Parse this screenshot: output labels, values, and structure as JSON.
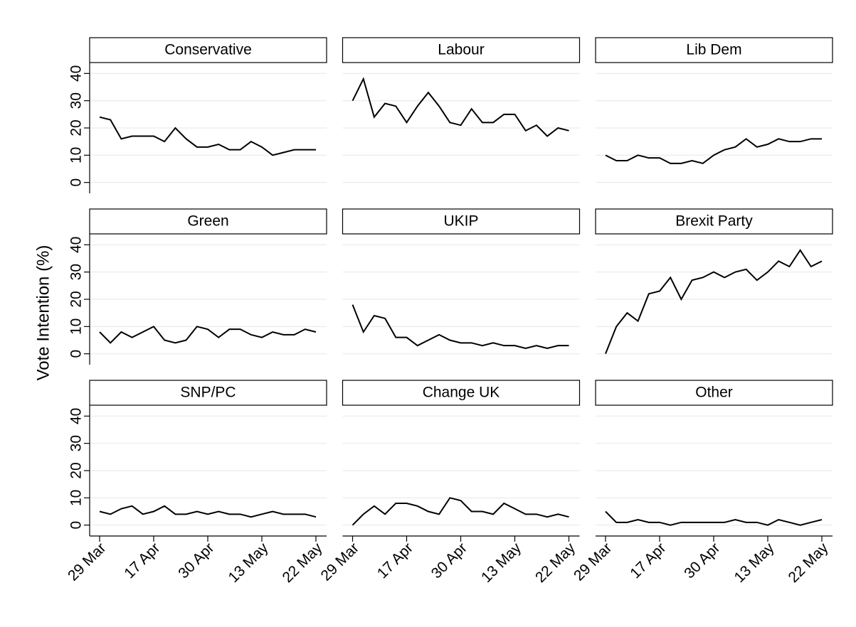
{
  "y_label": "Vote Intention (%)",
  "chart_data": [
    {
      "type": "line",
      "title": "Conservative",
      "color": "#000000",
      "ylim": [
        -4,
        44
      ],
      "yticks": [
        0,
        10,
        20,
        30,
        40
      ],
      "grid": true,
      "ytick_labels": true,
      "xtick_labels": false,
      "categories": [
        "29 Mar",
        null,
        null,
        null,
        null,
        "17 Apr",
        null,
        null,
        null,
        null,
        "30 Apr",
        null,
        null,
        null,
        null,
        "13 May",
        null,
        null,
        null,
        null,
        "22 May"
      ],
      "values": [
        24,
        23,
        16,
        17,
        17,
        17,
        15,
        20,
        16,
        13,
        13,
        14,
        12,
        12,
        15,
        13,
        10,
        11,
        12,
        12,
        12
      ]
    },
    {
      "type": "line",
      "title": "Labour",
      "color": "#000000",
      "ylim": [
        -4,
        44
      ],
      "yticks": [
        0,
        10,
        20,
        30,
        40
      ],
      "grid": true,
      "ytick_labels": false,
      "xtick_labels": false,
      "categories": [
        "29 Mar",
        null,
        null,
        null,
        null,
        "17 Apr",
        null,
        null,
        null,
        null,
        "30 Apr",
        null,
        null,
        null,
        null,
        "13 May",
        null,
        null,
        null,
        null,
        "22 May"
      ],
      "values": [
        30,
        38,
        24,
        29,
        28,
        22,
        28,
        33,
        28,
        22,
        21,
        27,
        22,
        22,
        25,
        25,
        19,
        21,
        17,
        20,
        19
      ]
    },
    {
      "type": "line",
      "title": "Lib Dem",
      "color": "#000000",
      "ylim": [
        -4,
        44
      ],
      "yticks": [
        0,
        10,
        20,
        30,
        40
      ],
      "grid": true,
      "ytick_labels": false,
      "xtick_labels": false,
      "categories": [
        "29 Mar",
        null,
        null,
        null,
        null,
        "17 Apr",
        null,
        null,
        null,
        null,
        "30 Apr",
        null,
        null,
        null,
        null,
        "13 May",
        null,
        null,
        null,
        null,
        "22 May"
      ],
      "values": [
        10,
        8,
        8,
        10,
        9,
        9,
        7,
        7,
        8,
        7,
        10,
        12,
        13,
        16,
        13,
        14,
        16,
        15,
        15,
        16,
        16
      ]
    },
    {
      "type": "line",
      "title": "Green",
      "color": "#000000",
      "ylim": [
        -4,
        44
      ],
      "yticks": [
        0,
        10,
        20,
        30,
        40
      ],
      "grid": true,
      "ytick_labels": true,
      "xtick_labels": false,
      "categories": [
        "29 Mar",
        null,
        null,
        null,
        null,
        "17 Apr",
        null,
        null,
        null,
        null,
        "30 Apr",
        null,
        null,
        null,
        null,
        "13 May",
        null,
        null,
        null,
        null,
        "22 May"
      ],
      "values": [
        8,
        4,
        8,
        6,
        8,
        10,
        5,
        4,
        5,
        10,
        9,
        6,
        9,
        9,
        7,
        6,
        8,
        7,
        7,
        9,
        8
      ]
    },
    {
      "type": "line",
      "title": "UKIP",
      "color": "#000000",
      "ylim": [
        -4,
        44
      ],
      "yticks": [
        0,
        10,
        20,
        30,
        40
      ],
      "grid": true,
      "ytick_labels": false,
      "xtick_labels": false,
      "categories": [
        "29 Mar",
        null,
        null,
        null,
        null,
        "17 Apr",
        null,
        null,
        null,
        null,
        "30 Apr",
        null,
        null,
        null,
        null,
        "13 May",
        null,
        null,
        null,
        null,
        "22 May"
      ],
      "values": [
        18,
        8,
        14,
        13,
        6,
        6,
        3,
        5,
        7,
        5,
        4,
        4,
        3,
        4,
        3,
        3,
        2,
        3,
        2,
        3,
        3
      ]
    },
    {
      "type": "line",
      "title": "Brexit Party",
      "color": "#000000",
      "ylim": [
        -4,
        44
      ],
      "yticks": [
        0,
        10,
        20,
        30,
        40
      ],
      "grid": true,
      "ytick_labels": false,
      "xtick_labels": false,
      "categories": [
        "29 Mar",
        null,
        null,
        null,
        null,
        "17 Apr",
        null,
        null,
        null,
        null,
        "30 Apr",
        null,
        null,
        null,
        null,
        "13 May",
        null,
        null,
        null,
        null,
        "22 May"
      ],
      "values": [
        0,
        10,
        15,
        12,
        22,
        23,
        28,
        20,
        27,
        28,
        30,
        28,
        30,
        31,
        27,
        30,
        34,
        32,
        38,
        32,
        34
      ]
    },
    {
      "type": "line",
      "title": "SNP/PC",
      "color": "#000000",
      "ylim": [
        -4,
        44
      ],
      "yticks": [
        0,
        10,
        20,
        30,
        40
      ],
      "grid": true,
      "ytick_labels": true,
      "xtick_labels": true,
      "categories": [
        "29 Mar",
        null,
        null,
        null,
        null,
        "17 Apr",
        null,
        null,
        null,
        null,
        "30 Apr",
        null,
        null,
        null,
        null,
        "13 May",
        null,
        null,
        null,
        null,
        "22 May"
      ],
      "values": [
        5,
        4,
        6,
        7,
        4,
        5,
        7,
        4,
        4,
        5,
        4,
        5,
        4,
        4,
        3,
        4,
        5,
        4,
        4,
        4,
        3
      ]
    },
    {
      "type": "line",
      "title": "Change UK",
      "color": "#000000",
      "ylim": [
        -4,
        44
      ],
      "yticks": [
        0,
        10,
        20,
        30,
        40
      ],
      "grid": true,
      "ytick_labels": false,
      "xtick_labels": true,
      "categories": [
        "29 Mar",
        null,
        null,
        null,
        null,
        "17 Apr",
        null,
        null,
        null,
        null,
        "30 Apr",
        null,
        null,
        null,
        null,
        "13 May",
        null,
        null,
        null,
        null,
        "22 May"
      ],
      "values": [
        0,
        4,
        7,
        4,
        8,
        8,
        7,
        5,
        4,
        10,
        9,
        5,
        5,
        4,
        8,
        6,
        4,
        4,
        3,
        4,
        3
      ]
    },
    {
      "type": "line",
      "title": "Other",
      "color": "#000000",
      "ylim": [
        -4,
        44
      ],
      "yticks": [
        0,
        10,
        20,
        30,
        40
      ],
      "grid": true,
      "ytick_labels": false,
      "xtick_labels": true,
      "categories": [
        "29 Mar",
        null,
        null,
        null,
        null,
        "17 Apr",
        null,
        null,
        null,
        null,
        "30 Apr",
        null,
        null,
        null,
        null,
        "13 May",
        null,
        null,
        null,
        null,
        "22 May"
      ],
      "values": [
        5,
        1,
        1,
        2,
        1,
        1,
        0,
        1,
        1,
        1,
        1,
        1,
        2,
        1,
        1,
        0,
        2,
        1,
        0,
        1,
        2
      ]
    }
  ]
}
